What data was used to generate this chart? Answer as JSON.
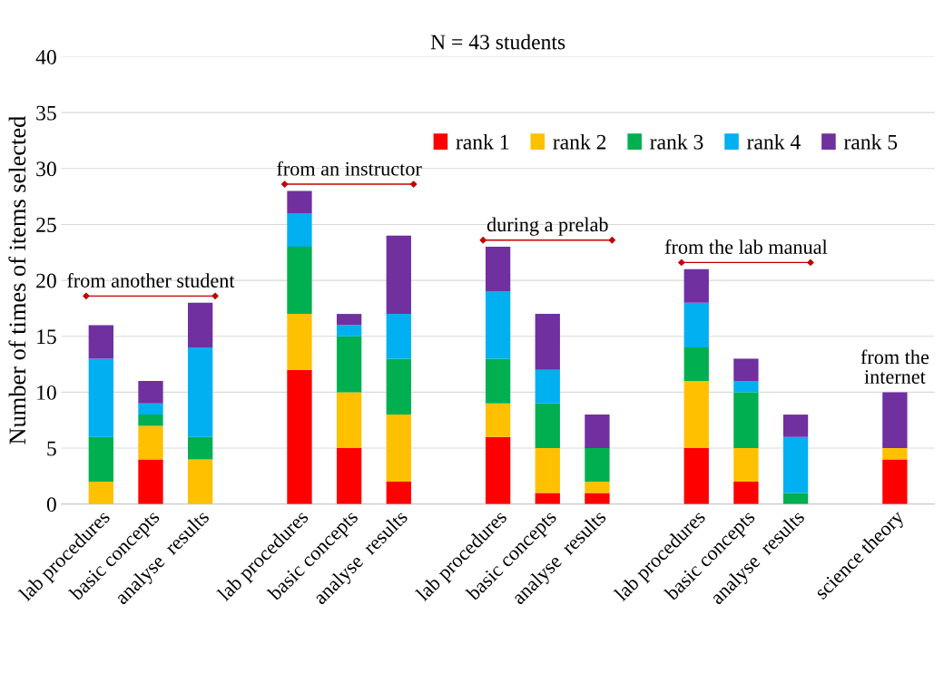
{
  "chart_data": {
    "type": "bar",
    "stacked": true,
    "title": "N = 43 students",
    "ylabel": "Number of times of items selected",
    "categories": [
      "lab procedures",
      "basic concepts",
      "analyse  results",
      null,
      "lab procedures",
      "basic concepts",
      "analyse  results",
      null,
      "lab procedures",
      "basic concepts",
      "analyse  results",
      null,
      "lab procedures",
      "basic concepts",
      "analyse  results",
      null,
      "science theory"
    ],
    "series": [
      {
        "name": "rank 1",
        "color": "#ff0000",
        "values": [
          0,
          4,
          0,
          null,
          12,
          5,
          2,
          null,
          6,
          1,
          1,
          null,
          5,
          2,
          0,
          null,
          4
        ]
      },
      {
        "name": "rank 2",
        "color": "#ffc000",
        "values": [
          2,
          3,
          4,
          null,
          5,
          5,
          6,
          null,
          3,
          4,
          1,
          null,
          6,
          3,
          0,
          null,
          1
        ]
      },
      {
        "name": "rank 3",
        "color": "#00b050",
        "values": [
          4,
          1,
          2,
          null,
          6,
          5,
          5,
          null,
          4,
          4,
          3,
          null,
          3,
          5,
          1,
          null,
          0
        ]
      },
      {
        "name": "rank 4",
        "color": "#00b0f0",
        "values": [
          7,
          1,
          8,
          null,
          3,
          1,
          4,
          null,
          6,
          3,
          0,
          null,
          4,
          1,
          5,
          null,
          0
        ]
      },
      {
        "name": "rank 5",
        "color": "#7030a0",
        "values": [
          3,
          2,
          4,
          null,
          2,
          1,
          7,
          null,
          4,
          5,
          3,
          null,
          3,
          2,
          2,
          null,
          5
        ]
      }
    ],
    "ylim": [
      0,
      40
    ],
    "yticks": [
      0,
      5,
      10,
      15,
      20,
      25,
      30,
      35,
      40
    ],
    "grid": "y",
    "legend": "top right",
    "annotations": [
      "from another student",
      "from an instructor",
      "during a prelab",
      "from the lab manual",
      "from the\ninternet"
    ]
  }
}
